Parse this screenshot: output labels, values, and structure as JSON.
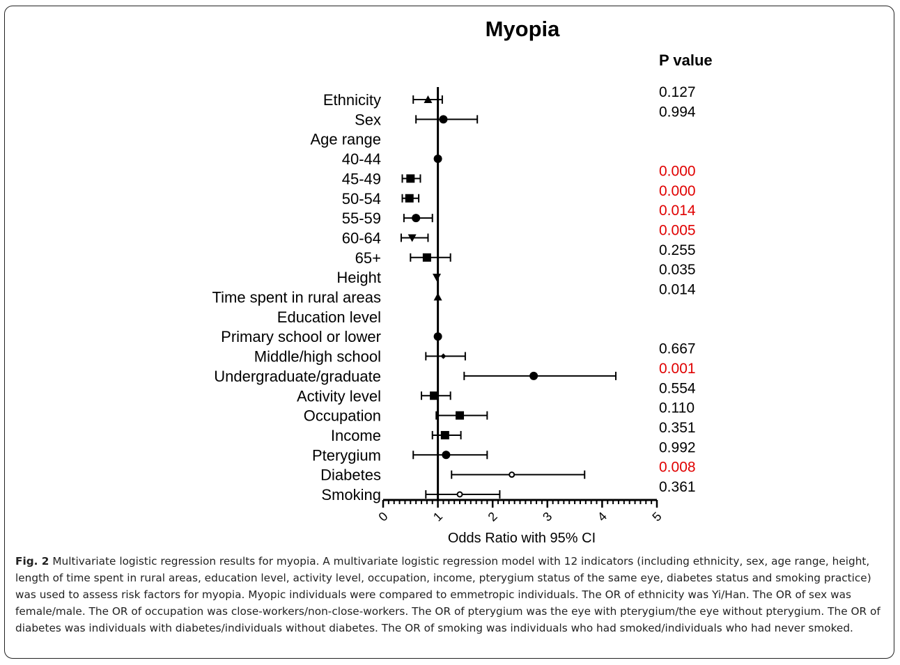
{
  "figure": {
    "label": "Fig. 2",
    "caption": "Multivariate logistic regression results for myopia. A multivariate logistic regression model with 12 indicators (including ethnicity, sex, age range, height, length of time spent in rural areas, education level, activity level, occupation, income, pterygium status of the same eye, diabetes status and smoking practice) was used to assess risk factors for myopia. Myopic individuals were compared to emmetropic individuals. The OR of ethnicity was Yi/Han. The OR of sex was female/male. The OR of occupation was close-workers/non-close-workers. The OR of pterygium was the eye with pterygium/the eye without pterygium. The OR of diabetes was individuals with diabetes/individuals without diabetes. The OR of smoking was individuals who had smoked/individuals who had never smoked."
  },
  "chart_data": {
    "type": "forest",
    "title": "Myopia",
    "xlabel": "Odds Ratio with 95% CI",
    "pvalue_header": "P value",
    "xlim": [
      0,
      5
    ],
    "xticks": [
      "0",
      "1",
      "2",
      "3",
      "4",
      "5"
    ],
    "reference_line": 1,
    "highlight_color": "#e00000",
    "text_color": "#000000",
    "rows": [
      {
        "label": "Ethnicity",
        "or": 0.82,
        "low": 0.55,
        "high": 1.08,
        "marker": "triangle",
        "p": "0.127",
        "sig": false
      },
      {
        "label": "Sex",
        "or": 1.1,
        "low": 0.6,
        "high": 1.72,
        "marker": "circle",
        "p": "0.994",
        "sig": false
      },
      {
        "label": "Age range",
        "or": null,
        "low": null,
        "high": null,
        "marker": "none",
        "p": "",
        "sig": false
      },
      {
        "label": "40-44",
        "or": 1.0,
        "low": null,
        "high": null,
        "marker": "circle",
        "p": "",
        "sig": false
      },
      {
        "label": "45-49",
        "or": 0.5,
        "low": 0.35,
        "high": 0.68,
        "marker": "square",
        "p": "0.000",
        "sig": true
      },
      {
        "label": "50-54",
        "or": 0.48,
        "low": 0.35,
        "high": 0.65,
        "marker": "square",
        "p": "0.000",
        "sig": true
      },
      {
        "label": "55-59",
        "or": 0.6,
        "low": 0.38,
        "high": 0.9,
        "marker": "circle",
        "p": "0.014",
        "sig": true
      },
      {
        "label": "60-64",
        "or": 0.53,
        "low": 0.33,
        "high": 0.82,
        "marker": "triangle-down",
        "p": "0.005",
        "sig": true
      },
      {
        "label": "65+",
        "or": 0.8,
        "low": 0.5,
        "high": 1.23,
        "marker": "square",
        "p": "0.255",
        "sig": false
      },
      {
        "label": "Height",
        "or": 0.98,
        "low": null,
        "high": null,
        "marker": "triangle-down",
        "p": "0.035",
        "sig": false
      },
      {
        "label": "Time spent in rural areas",
        "or": 1.0,
        "low": null,
        "high": null,
        "marker": "triangle",
        "p": "0.014",
        "sig": false
      },
      {
        "label": "Education level",
        "or": null,
        "low": null,
        "high": null,
        "marker": "none",
        "p": "",
        "sig": false
      },
      {
        "label": "Primary school or lower",
        "or": 1.0,
        "low": null,
        "high": null,
        "marker": "circle",
        "p": "",
        "sig": false
      },
      {
        "label": "Middle/high school",
        "or": 1.1,
        "low": 0.78,
        "high": 1.5,
        "marker": "diamond",
        "p": "0.667",
        "sig": false
      },
      {
        "label": "Undergraduate/graduate",
        "or": 2.75,
        "low": 1.48,
        "high": 4.25,
        "marker": "circle",
        "p": "0.001",
        "sig": true
      },
      {
        "label": "Activity level",
        "or": 0.93,
        "low": 0.7,
        "high": 1.23,
        "marker": "square",
        "p": "0.554",
        "sig": false
      },
      {
        "label": "Occupation",
        "or": 1.4,
        "low": 0.97,
        "high": 1.9,
        "marker": "square",
        "p": "0.110",
        "sig": false
      },
      {
        "label": "Income",
        "or": 1.13,
        "low": 0.9,
        "high": 1.42,
        "marker": "square",
        "p": "0.351",
        "sig": false
      },
      {
        "label": "Pterygium",
        "or": 1.15,
        "low": 0.55,
        "high": 1.9,
        "marker": "circle",
        "p": "0.992",
        "sig": false
      },
      {
        "label": "Diabetes",
        "or": 2.35,
        "low": 1.25,
        "high": 3.68,
        "marker": "small-circle",
        "p": "0.008",
        "sig": true
      },
      {
        "label": "Smoking",
        "or": 1.4,
        "low": 0.78,
        "high": 2.13,
        "marker": "small-circle",
        "p": "0.361",
        "sig": false
      }
    ]
  }
}
